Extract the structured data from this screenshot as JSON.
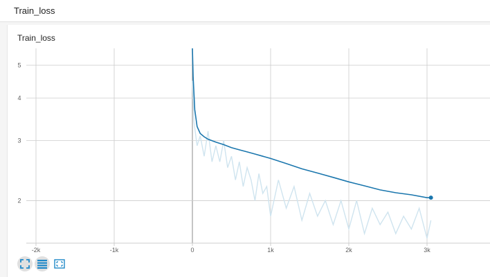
{
  "header": {
    "title": "Train_loss"
  },
  "card": {
    "title": "Train_loss"
  },
  "colors": {
    "smoothed": "#1a76ad",
    "raw": "#cfe4ef",
    "grid": "#cccccc",
    "zero_line": "#9e9e9e",
    "icon": "#1e88c8"
  },
  "toolbar": {
    "buttons": [
      {
        "name": "fit-domain-icon"
      },
      {
        "name": "toggle-log-scale-icon"
      },
      {
        "name": "expand-chart-icon"
      }
    ]
  },
  "chart_data": {
    "type": "line",
    "title": "Train_loss",
    "xlabel": "",
    "ylabel": "",
    "y_scale": "log",
    "xlim": [
      -2200,
      3800
    ],
    "ylim": [
      1.5,
      5.6
    ],
    "x_ticks": [
      -2000,
      -1000,
      0,
      1000,
      2000,
      3000
    ],
    "x_tick_labels": [
      "-2k",
      "-1k",
      "0",
      "1k",
      "2k",
      "3k"
    ],
    "y_ticks": [
      2,
      3,
      4,
      5
    ],
    "y_tick_labels": [
      "2",
      "3",
      "4",
      "5"
    ],
    "grid": true,
    "series": [
      {
        "role": "smoothed",
        "x": [
          0,
          10,
          30,
          60,
          100,
          150,
          200,
          300,
          400,
          500,
          600,
          700,
          800,
          900,
          1000,
          1200,
          1400,
          1600,
          1800,
          2000,
          2200,
          2400,
          2600,
          2800,
          3000,
          3050
        ],
        "values": [
          5.6,
          4.6,
          3.7,
          3.3,
          3.15,
          3.08,
          3.03,
          2.97,
          2.92,
          2.86,
          2.82,
          2.78,
          2.74,
          2.7,
          2.66,
          2.57,
          2.48,
          2.41,
          2.34,
          2.27,
          2.21,
          2.15,
          2.11,
          2.08,
          2.04,
          2.04
        ]
      },
      {
        "role": "raw",
        "x": [
          0,
          20,
          60,
          100,
          150,
          200,
          250,
          300,
          350,
          400,
          450,
          500,
          550,
          600,
          650,
          700,
          750,
          800,
          850,
          900,
          950,
          1000,
          1100,
          1200,
          1300,
          1400,
          1500,
          1600,
          1700,
          1800,
          1900,
          2000,
          2100,
          2200,
          2300,
          2400,
          2500,
          2600,
          2700,
          2800,
          2900,
          3000,
          3050
        ],
        "values": [
          4.5,
          3.4,
          2.9,
          3.1,
          2.7,
          3.2,
          2.6,
          2.9,
          2.6,
          3.0,
          2.5,
          2.7,
          2.3,
          2.6,
          2.2,
          2.5,
          2.3,
          2.0,
          2.4,
          2.1,
          2.2,
          1.8,
          2.3,
          1.9,
          2.2,
          1.75,
          2.1,
          1.8,
          2.0,
          1.7,
          2.0,
          1.65,
          2.0,
          1.6,
          1.9,
          1.7,
          1.85,
          1.6,
          1.8,
          1.65,
          1.9,
          1.55,
          1.75
        ]
      }
    ]
  }
}
